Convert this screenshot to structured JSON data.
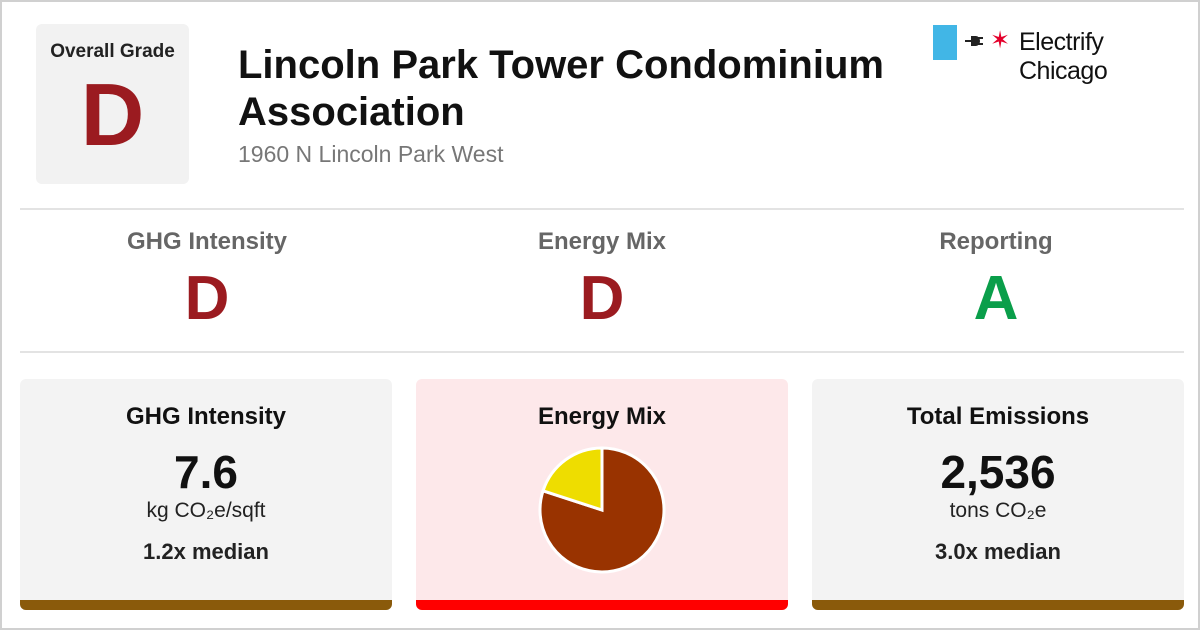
{
  "overall": {
    "label": "Overall Grade",
    "grade": "D",
    "grade_color": "#9b1b20"
  },
  "building": {
    "name": "Lincoln Park Tower Condominium Association",
    "address": "1960 N Lincoln Park West"
  },
  "brand": {
    "name": "Electrify Chicago",
    "plug_icon": "plug-icon",
    "star_icon": "chicago-star-icon",
    "flag_color": "#41b6e6",
    "star_color": "#e4002b"
  },
  "grades": [
    {
      "name": "GHG Intensity",
      "grade": "D",
      "color": "#9b1b20"
    },
    {
      "name": "Energy Mix",
      "grade": "D",
      "color": "#9b1b20"
    },
    {
      "name": "Reporting",
      "grade": "A",
      "color": "#0a9e4a"
    }
  ],
  "cards": {
    "ghg": {
      "title": "GHG Intensity",
      "value": "7.6",
      "unit": "kg CO₂e/sqft",
      "median": "1.2x median",
      "bar_color": "#8a5a0b"
    },
    "mix": {
      "title": "Energy Mix",
      "bg_color": "#fde8ea",
      "bar_color": "#ff0000",
      "pie": [
        {
          "fraction": 0.8,
          "color": "#993300"
        },
        {
          "fraction": 0.2,
          "color": "#eedd00"
        }
      ]
    },
    "emissions": {
      "title": "Total Emissions",
      "value": "2,536",
      "unit": "tons CO₂e",
      "median": "3.0x median",
      "bar_color": "#8a5a0b"
    }
  }
}
